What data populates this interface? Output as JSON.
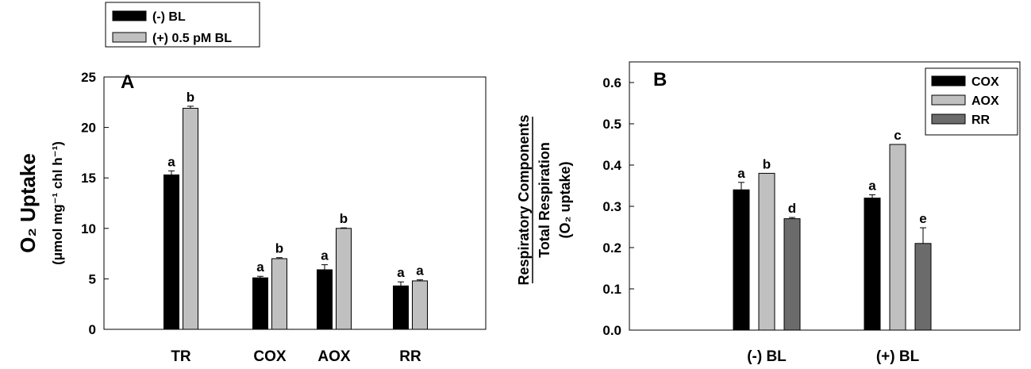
{
  "chart_data": [
    {
      "type": "bar",
      "panel_label": "A",
      "ylabel_main": "O₂ Uptake",
      "ylabel_units": "(μmol mg⁻¹ chl h⁻¹)",
      "categories": [
        "TR",
        "COX",
        "AOX",
        "RR"
      ],
      "ylim": [
        0,
        25
      ],
      "yticks": [
        "0",
        "5",
        "10",
        "15",
        "20",
        "25"
      ],
      "legend_position": "above-left",
      "series": [
        {
          "name": "(-) BL",
          "color": "#000000",
          "values": [
            15.3,
            5.1,
            5.9,
            4.3
          ],
          "errors": [
            0.4,
            0.15,
            0.5,
            0.4
          ],
          "labels": [
            "a",
            "a",
            "a",
            "a"
          ]
        },
        {
          "name": "(+) 0.5 pM BL",
          "color": "#c0c0c0",
          "values": [
            21.9,
            7.0,
            10.0,
            4.8
          ],
          "errors": [
            0.2,
            0.1,
            0.05,
            0.1
          ],
          "labels": [
            "b",
            "b",
            "b",
            "a"
          ]
        }
      ]
    },
    {
      "type": "bar",
      "panel_label": "B",
      "ylabel_lines": [
        "Respiratory Components",
        "Total Respiration",
        "(O₂ uptake)"
      ],
      "categories": [
        "(-) BL",
        "(+) BL"
      ],
      "ylim": [
        0,
        0.65
      ],
      "yticks": [
        "0.0",
        "0.1",
        "0.2",
        "0.3",
        "0.4",
        "0.5",
        "0.6"
      ],
      "legend_position": "top-right",
      "series": [
        {
          "name": "COX",
          "color": "#000000",
          "values": [
            0.34,
            0.32
          ],
          "errors": [
            0.018,
            0.008
          ],
          "labels": [
            "a",
            "a"
          ]
        },
        {
          "name": "AOX",
          "color": "#c0c0c0",
          "values": [
            0.38,
            0.45
          ],
          "errors": [
            0.0,
            0.0
          ],
          "labels": [
            "b",
            "c"
          ]
        },
        {
          "name": "RR",
          "color": "#6b6b6b",
          "values": [
            0.27,
            0.21
          ],
          "errors": [
            0.003,
            0.038
          ],
          "labels": [
            "d",
            "e"
          ]
        }
      ]
    }
  ]
}
